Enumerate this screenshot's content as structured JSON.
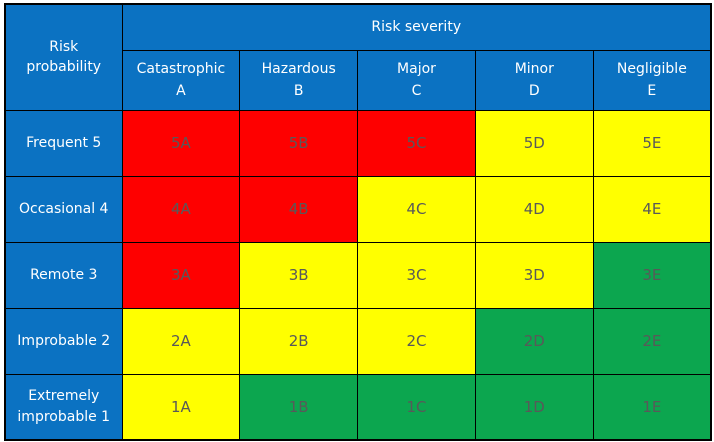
{
  "header": {
    "corner_label": "Risk probability",
    "severity_label": "Risk severity",
    "columns": [
      {
        "name": "Catastrophic",
        "code": "A"
      },
      {
        "name": "Hazardous",
        "code": "B"
      },
      {
        "name": "Major",
        "code": "C"
      },
      {
        "name": "Minor",
        "code": "D"
      },
      {
        "name": "Negligible",
        "code": "E"
      }
    ]
  },
  "rows": [
    {
      "label": "Frequent 5",
      "cells": [
        {
          "code": "5A",
          "level": "red"
        },
        {
          "code": "5B",
          "level": "red"
        },
        {
          "code": "5C",
          "level": "red"
        },
        {
          "code": "5D",
          "level": "yellow"
        },
        {
          "code": "5E",
          "level": "yellow"
        }
      ]
    },
    {
      "label": "Occasional 4",
      "cells": [
        {
          "code": "4A",
          "level": "red"
        },
        {
          "code": "4B",
          "level": "red"
        },
        {
          "code": "4C",
          "level": "yellow"
        },
        {
          "code": "4D",
          "level": "yellow"
        },
        {
          "code": "4E",
          "level": "yellow"
        }
      ]
    },
    {
      "label": "Remote 3",
      "cells": [
        {
          "code": "3A",
          "level": "red"
        },
        {
          "code": "3B",
          "level": "yellow"
        },
        {
          "code": "3C",
          "level": "yellow"
        },
        {
          "code": "3D",
          "level": "yellow"
        },
        {
          "code": "3E",
          "level": "green"
        }
      ]
    },
    {
      "label": "Improbable 2",
      "cells": [
        {
          "code": "2A",
          "level": "yellow"
        },
        {
          "code": "2B",
          "level": "yellow"
        },
        {
          "code": "2C",
          "level": "yellow"
        },
        {
          "code": "2D",
          "level": "green"
        },
        {
          "code": "2E",
          "level": "green"
        }
      ]
    },
    {
      "label": "Extremely improbable 1",
      "cells": [
        {
          "code": "1A",
          "level": "yellow"
        },
        {
          "code": "1B",
          "level": "green"
        },
        {
          "code": "1C",
          "level": "green"
        },
        {
          "code": "1D",
          "level": "green"
        },
        {
          "code": "1E",
          "level": "green"
        }
      ]
    }
  ],
  "colors": {
    "header_blue": "#0b72c2",
    "risk_red": "#fe0000",
    "risk_yellow": "#ffff00",
    "risk_green": "#0ca64f",
    "cell_text": "#595959",
    "header_text": "#ffffff",
    "table_border": "#000000",
    "page_bg": "#ffffff"
  }
}
